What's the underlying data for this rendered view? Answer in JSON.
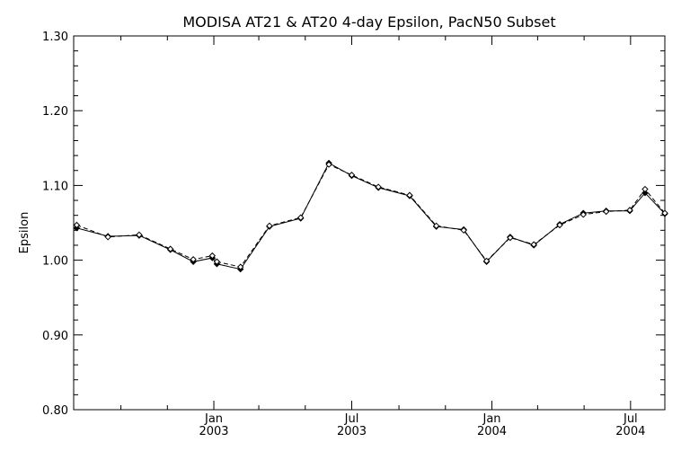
{
  "chart_data": {
    "type": "line",
    "title": "MODISA AT21 & AT20 4-day Epsilon, PacN50 Subset",
    "xlabel": "",
    "ylabel": "Epsilon",
    "ylim": [
      0.8,
      1.3
    ],
    "y_ticks": [
      "0.80",
      "0.90",
      "1.00",
      "1.10",
      "1.20",
      "1.30"
    ],
    "x_tick_labels": [
      {
        "month": "Jan",
        "year": "2003"
      },
      {
        "month": "Jul",
        "year": "2003"
      },
      {
        "month": "Jan",
        "year": "2004"
      },
      {
        "month": "Jul",
        "year": "2004"
      }
    ],
    "x_range": [
      "2002-07-01",
      "2004-08-15"
    ],
    "grid": false,
    "series": [
      {
        "name": "",
        "style": "solid",
        "marker": "filled-diamond",
        "x": [
          "2002-07-05",
          "2002-08-15",
          "2002-09-25",
          "2002-11-05",
          "2002-12-05",
          "2002-12-30",
          "2003-01-05",
          "2003-02-05",
          "2003-03-15",
          "2003-04-25",
          "2003-06-01",
          "2003-07-01",
          "2003-08-05",
          "2003-09-15",
          "2003-10-20",
          "2003-11-25",
          "2003-12-25",
          "2004-01-25",
          "2004-02-25",
          "2004-03-30",
          "2004-04-30",
          "2004-05-30",
          "2004-06-30",
          "2004-07-20",
          "2004-08-15"
        ],
        "y": [
          1.043,
          1.032,
          1.033,
          1.014,
          0.998,
          1.003,
          0.995,
          0.988,
          1.045,
          1.056,
          1.13,
          1.113,
          1.097,
          1.086,
          1.045,
          1.041,
          0.998,
          1.031,
          1.02,
          1.048,
          1.063,
          1.066,
          1.066,
          1.09,
          1.062
        ]
      },
      {
        "name": "",
        "style": "dashed",
        "marker": "open-diamond",
        "x": [
          "2002-07-05",
          "2002-08-15",
          "2002-09-25",
          "2002-11-05",
          "2002-12-05",
          "2002-12-30",
          "2003-01-05",
          "2003-02-05",
          "2003-03-15",
          "2003-04-25",
          "2003-06-01",
          "2003-07-01",
          "2003-08-05",
          "2003-09-15",
          "2003-10-20",
          "2003-11-25",
          "2003-12-25",
          "2004-01-25",
          "2004-02-25",
          "2004-03-30",
          "2004-04-30",
          "2004-05-30",
          "2004-06-30",
          "2004-07-20",
          "2004-08-15"
        ],
        "y": [
          1.047,
          1.031,
          1.034,
          1.015,
          1.001,
          1.006,
          0.998,
          0.991,
          1.046,
          1.057,
          1.128,
          1.114,
          1.098,
          1.087,
          1.046,
          1.04,
          0.999,
          1.03,
          1.021,
          1.047,
          1.061,
          1.065,
          1.067,
          1.095,
          1.063
        ]
      }
    ]
  }
}
